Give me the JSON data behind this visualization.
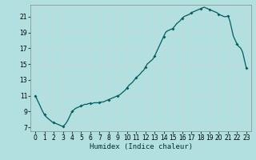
{
  "xlabel": "Humidex (Indice chaleur)",
  "xlim": [
    -0.5,
    23.5
  ],
  "ylim": [
    6.5,
    22.5
  ],
  "yticks": [
    7,
    9,
    11,
    13,
    15,
    17,
    19,
    21
  ],
  "xticks": [
    0,
    1,
    2,
    3,
    4,
    5,
    6,
    7,
    8,
    9,
    10,
    11,
    12,
    13,
    14,
    15,
    16,
    17,
    18,
    19,
    20,
    21,
    22,
    23
  ],
  "bg_color": "#b2dfdf",
  "line_color": "#005f5f",
  "marker_color": "#005f5f",
  "x": [
    0,
    0.2,
    0.4,
    0.6,
    0.8,
    1.0,
    1.2,
    1.4,
    1.6,
    1.8,
    2.0,
    2.2,
    2.4,
    2.6,
    2.8,
    3.0,
    3.2,
    3.4,
    3.6,
    3.8,
    4.0,
    4.2,
    4.4,
    4.6,
    4.8,
    5.0,
    5.2,
    5.4,
    5.6,
    5.8,
    6.0,
    6.2,
    6.4,
    6.6,
    6.8,
    7.0,
    7.2,
    7.4,
    7.6,
    7.8,
    8.0,
    8.2,
    8.4,
    8.6,
    8.8,
    9.0,
    9.2,
    9.4,
    9.6,
    9.8,
    10.0,
    10.2,
    10.4,
    10.6,
    10.8,
    11.0,
    11.2,
    11.4,
    11.6,
    11.8,
    12.0,
    12.2,
    12.4,
    12.6,
    12.8,
    13.0,
    13.2,
    13.4,
    13.6,
    13.8,
    14.0,
    14.2,
    14.4,
    14.6,
    14.8,
    15.0,
    15.2,
    15.4,
    15.6,
    15.8,
    16.0,
    16.2,
    16.4,
    16.6,
    16.8,
    17.0,
    17.2,
    17.4,
    17.6,
    17.8,
    18.0,
    18.2,
    18.4,
    18.6,
    18.8,
    19.0,
    19.2,
    19.4,
    19.6,
    19.8,
    20.0,
    20.2,
    20.4,
    20.6,
    20.8,
    21.0,
    21.2,
    21.4,
    21.6,
    21.8,
    22.0,
    22.2,
    22.4,
    22.6,
    22.8,
    23.0
  ],
  "y": [
    11.0,
    10.5,
    10.0,
    9.5,
    9.0,
    8.6,
    8.3,
    8.1,
    7.9,
    7.7,
    7.6,
    7.5,
    7.4,
    7.3,
    7.2,
    7.1,
    7.3,
    7.6,
    8.0,
    8.5,
    9.0,
    9.2,
    9.4,
    9.5,
    9.6,
    9.7,
    9.8,
    9.9,
    9.9,
    10.0,
    10.0,
    10.0,
    10.1,
    10.1,
    10.1,
    10.1,
    10.2,
    10.2,
    10.3,
    10.4,
    10.5,
    10.6,
    10.7,
    10.8,
    10.9,
    11.0,
    11.1,
    11.3,
    11.5,
    11.7,
    12.0,
    12.3,
    12.5,
    12.7,
    13.0,
    13.3,
    13.5,
    13.7,
    14.0,
    14.2,
    14.6,
    15.0,
    15.2,
    15.4,
    15.6,
    16.0,
    16.5,
    17.0,
    17.5,
    18.0,
    18.5,
    19.0,
    19.2,
    19.3,
    19.4,
    19.5,
    19.8,
    20.1,
    20.3,
    20.5,
    20.8,
    21.0,
    21.1,
    21.2,
    21.3,
    21.5,
    21.6,
    21.7,
    21.8,
    21.9,
    22.0,
    22.1,
    22.2,
    22.1,
    22.0,
    21.9,
    21.8,
    21.7,
    21.6,
    21.5,
    21.3,
    21.2,
    21.1,
    21.0,
    21.0,
    21.1,
    20.5,
    19.5,
    18.5,
    18.0,
    17.5,
    17.2,
    17.0,
    16.5,
    15.5,
    14.5
  ],
  "marker_x": [
    0,
    1,
    2,
    3,
    4,
    5,
    6,
    7,
    8,
    9,
    10,
    11,
    12,
    13,
    14,
    15,
    16,
    17,
    18,
    19,
    20,
    21,
    22,
    23
  ],
  "marker_y": [
    11.0,
    8.6,
    7.6,
    7.1,
    9.0,
    9.7,
    10.0,
    10.1,
    10.5,
    11.0,
    12.0,
    13.3,
    14.6,
    16.0,
    18.5,
    19.5,
    20.8,
    21.5,
    22.0,
    21.9,
    21.3,
    21.1,
    17.5,
    14.5
  ]
}
